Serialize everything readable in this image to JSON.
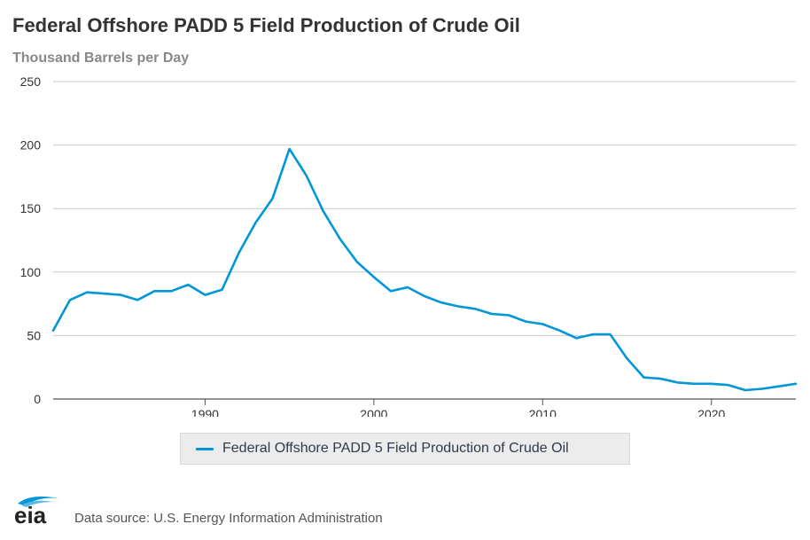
{
  "header": {
    "title": "Federal Offshore PADD 5 Field Production of Crude Oil",
    "units": "Thousand Barrels per Day"
  },
  "chart_data": {
    "type": "line",
    "title": "Federal Offshore PADD 5 Field Production of Crude Oil",
    "ylabel": "Thousand Barrels per Day",
    "xlabel": "",
    "xlim": [
      1981,
      2025
    ],
    "ylim": [
      0,
      250
    ],
    "x_ticks": [
      1990,
      2000,
      2010,
      2020
    ],
    "y_ticks": [
      0,
      50,
      100,
      150,
      200,
      250
    ],
    "grid": true,
    "legend_position": "bottom-center",
    "color": "#0096d7",
    "series": [
      {
        "name": "Federal Offshore PADD 5 Field Production of Crude Oil",
        "x": [
          1981,
          1982,
          1983,
          1984,
          1985,
          1986,
          1987,
          1988,
          1989,
          1990,
          1991,
          1992,
          1993,
          1994,
          1995,
          1996,
          1997,
          1998,
          1999,
          2000,
          2001,
          2002,
          2003,
          2004,
          2005,
          2006,
          2007,
          2008,
          2009,
          2010,
          2011,
          2012,
          2013,
          2014,
          2015,
          2016,
          2017,
          2018,
          2019,
          2020,
          2021,
          2022,
          2023,
          2024,
          2025
        ],
        "values": [
          54,
          78,
          84,
          83,
          82,
          78,
          85,
          85,
          90,
          82,
          86,
          115,
          139,
          158,
          197,
          176,
          148,
          126,
          108,
          96,
          85,
          88,
          81,
          76,
          73,
          71,
          67,
          66,
          61,
          59,
          54,
          48,
          51,
          51,
          32,
          17,
          16,
          13,
          12,
          12,
          11,
          7,
          8,
          10,
          12
        ]
      }
    ]
  },
  "legend": {
    "label": "Federal Offshore PADD 5 Field Production of Crude Oil"
  },
  "footer": {
    "logo_text": "eia",
    "source": "Data source: U.S. Energy Information Administration"
  }
}
